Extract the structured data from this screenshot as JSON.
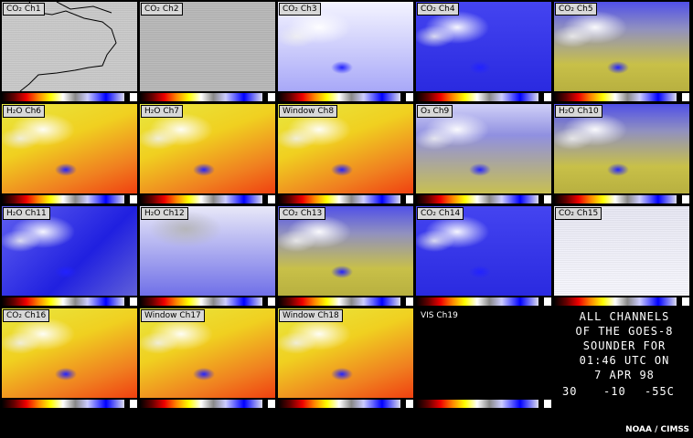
{
  "panels": [
    "CO₂ Ch1",
    "CO₂ Ch2",
    "CO₂ Ch3",
    "CO₂ Ch4",
    "CO₂ Ch5",
    "H₂O Ch6",
    "H₂O Ch7",
    "Window Ch8",
    "O₃ Ch9",
    "H₂O Ch10",
    "H₂O Ch11",
    "H₂O Ch12",
    "CO₂ Ch13",
    "CO₂ Ch14",
    "CO₂ Ch15",
    "CO₂ Ch16",
    "Window Ch17",
    "Window Ch18",
    "VIS Ch19"
  ],
  "caption": [
    "ALL CHANNELS",
    "OF THE GOES-8",
    "SOUNDER FOR",
    "01:46 UTC ON",
    "7 APR 98"
  ],
  "scale_labels": [
    "30",
    "-10",
    "-55C"
  ],
  "credit": "NOAA / CIMSS"
}
